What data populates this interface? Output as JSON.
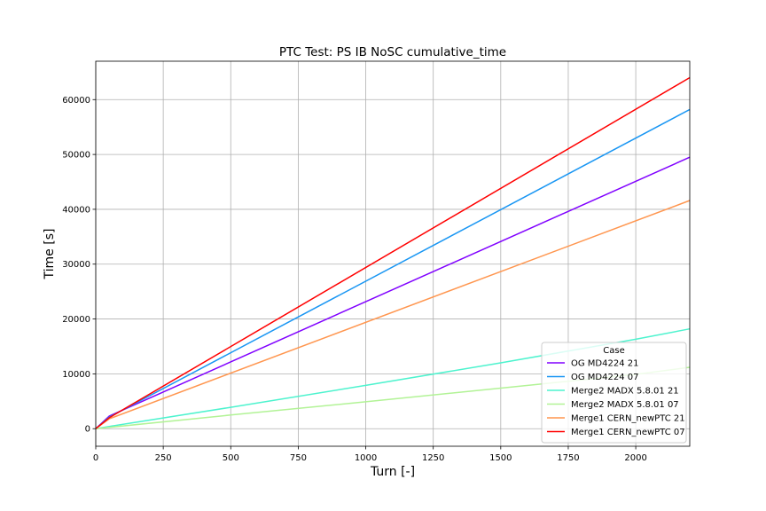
{
  "chart_data": {
    "type": "line",
    "title": "PTC Test: PS IB NoSC cumulative_time",
    "xlabel": "Turn [-]",
    "ylabel": "Time [s]",
    "xlim": [
      0,
      2200
    ],
    "ylim": [
      -3200,
      67000
    ],
    "xticks": [
      0,
      250,
      500,
      750,
      1000,
      1250,
      1500,
      1750,
      2000
    ],
    "yticks": [
      0,
      10000,
      20000,
      30000,
      40000,
      50000,
      60000
    ],
    "grid": true,
    "legend": {
      "title": "Case",
      "placement": "lower-right"
    },
    "series": [
      {
        "name": "OG MD4224 21",
        "color": "#8000ff",
        "x": [
          0,
          50,
          2200
        ],
        "y": [
          0,
          2300,
          49500
        ]
      },
      {
        "name": "OG MD4224 07",
        "color": "#1996f3",
        "x": [
          0,
          50,
          2200
        ],
        "y": [
          0,
          2100,
          58200
        ]
      },
      {
        "name": "Merge2 MADX 5.8.01 21",
        "color": "#4df3ce",
        "x": [
          0,
          50,
          500,
          1000,
          1500,
          2000,
          2200
        ],
        "y": [
          0,
          400,
          3900,
          7900,
          12000,
          16300,
          18200
        ]
      },
      {
        "name": "Merge2 MADX 5.8.01 07",
        "color": "#b2f396",
        "x": [
          0,
          50,
          500,
          1000,
          1500,
          2000,
          2200
        ],
        "y": [
          0,
          250,
          2500,
          4900,
          7400,
          9900,
          11200
        ]
      },
      {
        "name": "Merge1 CERN_newPTC 21",
        "color": "#ff964f",
        "x": [
          0,
          50,
          2200
        ],
        "y": [
          0,
          1800,
          41600
        ]
      },
      {
        "name": "Merge1 CERN_newPTC 07",
        "color": "#ff0000",
        "x": [
          0,
          50,
          2200
        ],
        "y": [
          0,
          2000,
          64000
        ]
      }
    ]
  }
}
